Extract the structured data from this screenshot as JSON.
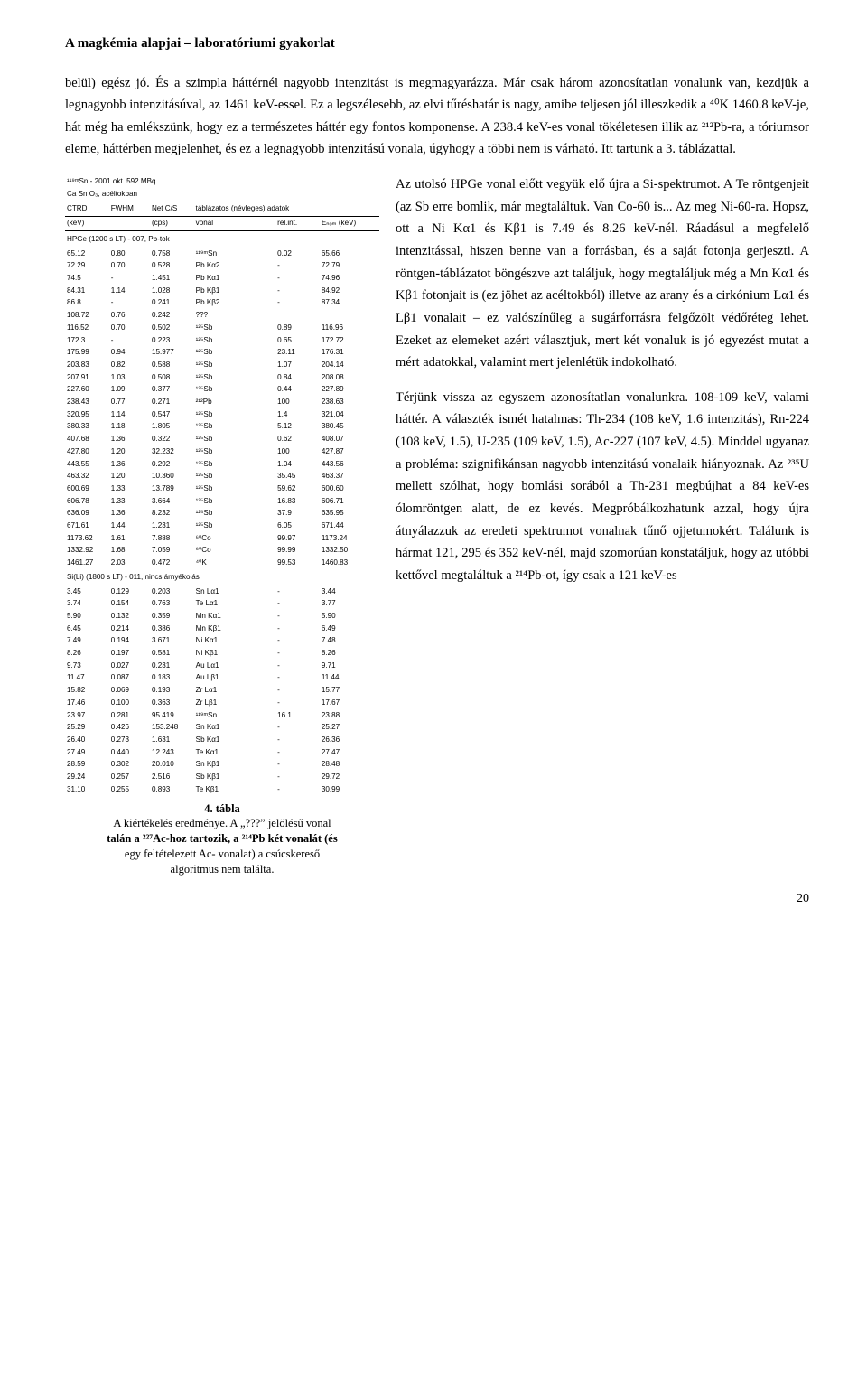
{
  "header": {
    "title": "A magkémia alapjai – laboratóriumi gyakorlat"
  },
  "paragraphs": {
    "p1": "belül) egész jó. És a szimpla háttérnél nagyobb intenzitást is megmagyarázza. Már csak három azonosítatlan vonalunk van, kezdjük a legnagyobb intenzitásúval, az 1461 keV-essel. Ez a legszélesebb, az elvi tűréshatár is nagy, amibe teljesen jól illeszkedik a ⁴⁰K 1460.8 keV-je, hát még ha emlékszünk, hogy ez a természetes háttér egy fontos komponense. A 238.4 keV-es vonal tökéletesen illik az ²¹²Pb-ra, a tóriumsor eleme, háttérben megjelenhet, és ez a legnagyobb intenzitású vonala, úgyhogy a többi nem is várható. Itt tartunk a 3. táblázattal."
  },
  "right": {
    "p1": "Az utolsó HPGe vonal előtt vegyük elő újra a Si-spektrumot. A Te röntgenjeit (az Sb erre bomlik, már megtaláltuk. Van Co-60 is... Az meg Ni-60-ra. Hopsz, ott a Ni Kα1 és Kβ1 is 7.49 és 8.26 keV-nél. Ráadásul a megfelelő intenzitással, hiszen benne van a forrásban, és a saját fotonja gerjeszti. A röntgen-táblázatot böngészve azt találjuk, hogy megtaláljuk még a Mn Kα1 és Kβ1 fotonjait is (ez jöhet az acéltokból) illetve az arany és a cirkónium Lα1 és Lβ1 vonalait – ez valószínűleg a sugárforrásra felgőzölt védőréteg lehet. Ezeket az elemeket azért választjuk, mert két vonaluk is jó egyezést mutat a mért adatokkal, valamint mert jelenlétük indokolható.",
    "p2": "Térjünk vissza az egyszem azonosítatlan vonalunkra. 108-109 keV, valami háttér. A választék ismét hatalmas: Th-234 (108 keV, 1.6 intenzitás), Rn-224 (108 keV, 1.5), U-235 (109 keV, 1.5), Ac-227 (107 keV, 4.5). Minddel ugyanaz a probléma: szignifikánsan nagyobb intenzitású vonalaik hiányoznak. Az ²³⁵U mellett szólhat, hogy bomlási sorából a Th-231 megbújhat a 84 keV-es ólomröntgen alatt, de ez kevés. Megpróbálkozhatunk azzal, hogy újra átnyálazzuk az eredeti spektrumot vonalnak tűnő ojjetumokért. Találunk is hármat 121, 295 és 352 keV-nél, majd szomorúan konstatáljuk, hogy az utóbbi kettővel megtaláltuk a ²¹⁴Pb-ot, így csak a 121 keV-es"
  },
  "table": {
    "title": "¹¹⁹ᵐSn - 2001.okt. 592 MBq",
    "subtitle": "Ca Sn O₃, acéltokban",
    "head1": [
      "CTRD",
      "FWHM",
      "Net C/S",
      "táblázatos (névleges) adatok",
      "",
      ""
    ],
    "head2": [
      "(keV)",
      "",
      "(cps)",
      "vonal",
      "rel.int.",
      "Eₙₒₘ (keV)"
    ],
    "section1": "HPGe (1200 s LT) - 007, Pb-tok",
    "rows1": [
      [
        "65.12",
        "0.80",
        "0.758",
        "¹¹⁹ᵐSn",
        "0.02",
        "65.66"
      ],
      [
        "72.29",
        "0.70",
        "0.528",
        "Pb Kα2",
        "-",
        "72.79"
      ],
      [
        "74.5",
        "-",
        "1.451",
        "Pb Kα1",
        "-",
        "74.96"
      ],
      [
        "84.31",
        "1.14",
        "1.028",
        "Pb Kβ1",
        "-",
        "84.92"
      ],
      [
        "86.8",
        "-",
        "0.241",
        "Pb Kβ2",
        "-",
        "87.34"
      ],
      [
        "108.72",
        "0.76",
        "0.242",
        "???",
        "",
        ""
      ],
      [
        "116.52",
        "0.70",
        "0.502",
        "¹²⁵Sb",
        "0.89",
        "116.96"
      ],
      [
        "172.3",
        "-",
        "0.223",
        "¹²⁵Sb",
        "0.65",
        "172.72"
      ],
      [
        "175.99",
        "0.94",
        "15.977",
        "¹²⁵Sb",
        "23.11",
        "176.31"
      ],
      [
        "203.83",
        "0.82",
        "0.588",
        "¹²⁵Sb",
        "1.07",
        "204.14"
      ],
      [
        "207.91",
        "1.03",
        "0.508",
        "¹²⁵Sb",
        "0.84",
        "208.08"
      ],
      [
        "227.60",
        "1.09",
        "0.377",
        "¹²⁵Sb",
        "0.44",
        "227.89"
      ],
      [
        "238.43",
        "0.77",
        "0.271",
        "²¹²Pb",
        "100",
        "238.63"
      ],
      [
        "320.95",
        "1.14",
        "0.547",
        "¹²⁵Sb",
        "1.4",
        "321.04"
      ],
      [
        "380.33",
        "1.18",
        "1.805",
        "¹²⁵Sb",
        "5.12",
        "380.45"
      ],
      [
        "407.68",
        "1.36",
        "0.322",
        "¹²⁵Sb",
        "0.62",
        "408.07"
      ],
      [
        "427.80",
        "1.20",
        "32.232",
        "¹²⁵Sb",
        "100",
        "427.87"
      ],
      [
        "443.55",
        "1.36",
        "0.292",
        "¹²⁵Sb",
        "1.04",
        "443.56"
      ],
      [
        "463.32",
        "1.20",
        "10.360",
        "¹²⁵Sb",
        "35.45",
        "463.37"
      ],
      [
        "600.69",
        "1.33",
        "13.789",
        "¹²⁵Sb",
        "59.62",
        "600.60"
      ],
      [
        "606.78",
        "1.33",
        "3.664",
        "¹²⁵Sb",
        "16.83",
        "606.71"
      ],
      [
        "636.09",
        "1.36",
        "8.232",
        "¹²⁵Sb",
        "37.9",
        "635.95"
      ],
      [
        "671.61",
        "1.44",
        "1.231",
        "¹²⁵Sb",
        "6.05",
        "671.44"
      ],
      [
        "1173.62",
        "1.61",
        "7.888",
        "⁶⁰Co",
        "99.97",
        "1173.24"
      ],
      [
        "1332.92",
        "1.68",
        "7.059",
        "⁶⁰Co",
        "99.99",
        "1332.50"
      ],
      [
        "1461.27",
        "2.03",
        "0.472",
        "⁴⁰K",
        "99.53",
        "1460.83"
      ]
    ],
    "section2": "Si(Li) (1800 s LT) - 011, nincs árnyékolás",
    "rows2": [
      [
        "3.45",
        "0.129",
        "0.203",
        "Sn Lα1",
        "-",
        "3.44"
      ],
      [
        "3.74",
        "0.154",
        "0.763",
        "Te Lα1",
        "-",
        "3.77"
      ],
      [
        "5.90",
        "0.132",
        "0.359",
        "Mn Kα1",
        "-",
        "5.90"
      ],
      [
        "6.45",
        "0.214",
        "0.386",
        "Mn Kβ1",
        "-",
        "6.49"
      ],
      [
        "7.49",
        "0.194",
        "3.671",
        "Ni Kα1",
        "-",
        "7.48"
      ],
      [
        "8.26",
        "0.197",
        "0.581",
        "Ni Kβ1",
        "-",
        "8.26"
      ],
      [
        "9.73",
        "0.027",
        "0.231",
        "Au Lα1",
        "-",
        "9.71"
      ],
      [
        "11.47",
        "0.087",
        "0.183",
        "Au Lβ1",
        "-",
        "11.44"
      ],
      [
        "15.82",
        "0.069",
        "0.193",
        "Zr Lα1",
        "-",
        "15.77"
      ],
      [
        "17.46",
        "0.100",
        "0.363",
        "Zr Lβ1",
        "-",
        "17.67"
      ],
      [
        "23.97",
        "0.281",
        "95.419",
        "¹¹⁹ᵐSn",
        "16.1",
        "23.88"
      ],
      [
        "25.29",
        "0.426",
        "153.248",
        "Sn Kα1",
        "-",
        "25.27"
      ],
      [
        "26.40",
        "0.273",
        "1.631",
        "Sb Kα1",
        "-",
        "26.36"
      ],
      [
        "27.49",
        "0.440",
        "12.243",
        "Te Kα1",
        "-",
        "27.47"
      ],
      [
        "28.59",
        "0.302",
        "20.010",
        "Sn Kβ1",
        "-",
        "28.48"
      ],
      [
        "29.24",
        "0.257",
        "2.516",
        "Sb Kβ1",
        "-",
        "29.72"
      ],
      [
        "31.10",
        "0.255",
        "0.893",
        "Te Kβ1",
        "-",
        "30.99"
      ]
    ]
  },
  "caption": {
    "label": "4. tábla",
    "line1": "A kiértékelés eredménye. A „???” jelölésű vonal",
    "line2": "talán a ²²⁷Ac-hoz tartozik, a ²¹⁴Pb két vonalát (és",
    "line3": "egy feltételezett Ac- vonalat) a csúcskereső",
    "line4": "algoritmus nem találta."
  },
  "pageNumber": "20"
}
